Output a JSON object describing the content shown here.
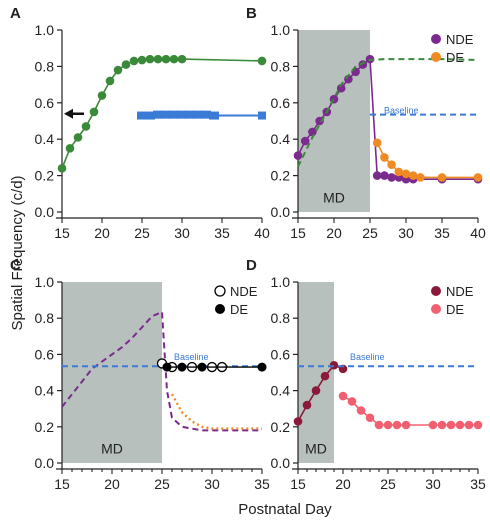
{
  "figure": {
    "shared_ylabel": "Spatial Frequency (c/d)",
    "shared_xlabel": "Postnatal Day"
  },
  "chart_data": [
    {
      "panel": "A",
      "type": "line",
      "xlim": [
        15,
        40
      ],
      "ylim": [
        0,
        1.0
      ],
      "xticks": [
        15,
        20,
        25,
        30,
        35,
        40
      ],
      "yticks": [
        0.0,
        0.2,
        0.4,
        0.6,
        0.8,
        1.0
      ],
      "ytick_labels": [
        "0.0",
        "0.2",
        "0.4",
        "0.6",
        "0.8",
        "1.0"
      ],
      "grid": false,
      "series": [
        {
          "color": "#3a8a3a",
          "style": "solid-markers",
          "x": [
            15,
            16,
            17,
            18,
            19,
            20,
            21,
            22,
            23,
            24,
            25,
            26,
            27,
            28,
            29,
            30,
            40
          ],
          "y": [
            0.24,
            0.35,
            0.41,
            0.47,
            0.55,
            0.64,
            0.72,
            0.78,
            0.81,
            0.83,
            0.835,
            0.84,
            0.84,
            0.84,
            0.84,
            0.84,
            0.83
          ]
        },
        {
          "color": "#3a7bd5",
          "style": "band",
          "x": [
            25,
            26,
            27,
            28,
            29,
            30,
            31,
            32,
            33,
            34,
            40
          ],
          "y": [
            0.53,
            0.53,
            0.535,
            0.535,
            0.535,
            0.535,
            0.535,
            0.535,
            0.535,
            0.53,
            0.53
          ]
        }
      ],
      "annotations": [
        {
          "kind": "arrow",
          "y": 0.54
        }
      ]
    },
    {
      "panel": "B",
      "type": "line",
      "xlim": [
        15,
        40
      ],
      "ylim": [
        0,
        1.0
      ],
      "xticks": [
        15,
        20,
        25,
        30,
        35,
        40
      ],
      "yticks": [
        0.0,
        0.2,
        0.4,
        0.6,
        0.8,
        1.0
      ],
      "grid": false,
      "shaded_region": {
        "x": [
          15,
          25
        ],
        "label": "MD",
        "color": "#b7c0bd"
      },
      "legend": {
        "position": "top-right",
        "entries": [
          "NDE",
          "DE"
        ]
      },
      "series": [
        {
          "name": "NDE",
          "color": "#7b2a8e",
          "style": "solid-markers",
          "x": [
            15,
            16,
            17,
            18,
            19,
            20,
            21,
            22,
            23,
            24,
            25,
            26,
            27,
            28,
            29,
            30,
            31,
            35,
            40
          ],
          "y": [
            0.31,
            0.39,
            0.44,
            0.5,
            0.55,
            0.62,
            0.68,
            0.73,
            0.77,
            0.81,
            0.84,
            0.2,
            0.2,
            0.19,
            0.19,
            0.18,
            0.18,
            0.18,
            0.18
          ]
        },
        {
          "name": "DE",
          "color": "#f08a24",
          "style": "solid-markers",
          "x": [
            26,
            27,
            28,
            29,
            30,
            31,
            32,
            35,
            40
          ],
          "y": [
            0.38,
            0.3,
            0.26,
            0.22,
            0.21,
            0.2,
            0.19,
            0.19,
            0.19
          ]
        },
        {
          "color": "#3a8a3a",
          "style": "dashed",
          "x": [
            15,
            17,
            19,
            21,
            23,
            25,
            27,
            30,
            35,
            40
          ],
          "y": [
            0.25,
            0.41,
            0.55,
            0.7,
            0.8,
            0.835,
            0.84,
            0.84,
            0.84,
            0.835
          ]
        },
        {
          "name": "Baseline",
          "color": "#3a7bd5",
          "style": "dashed",
          "x": [
            25,
            40
          ],
          "y": [
            0.535,
            0.535
          ]
        }
      ],
      "annotations": [
        {
          "kind": "text",
          "text": "Baseline"
        }
      ]
    },
    {
      "panel": "C",
      "type": "line",
      "xlim": [
        15,
        35
      ],
      "ylim": [
        0,
        1.0
      ],
      "xticks": [
        15,
        20,
        25,
        30,
        35
      ],
      "yticks": [
        0.0,
        0.2,
        0.4,
        0.6,
        0.8,
        1.0
      ],
      "ytick_labels": [
        "0.0",
        "0.2",
        "0.4",
        "0.6",
        "0.8",
        "1.0"
      ],
      "grid": false,
      "shaded_region": {
        "x": [
          15,
          25
        ],
        "label": "MD",
        "color": "#b7c0bd"
      },
      "legend": {
        "position": "top-right",
        "entries": [
          "NDE",
          "DE"
        ]
      },
      "series": [
        {
          "color": "#7b2a8e",
          "style": "dashed",
          "x": [
            15,
            16,
            17,
            18,
            19,
            20,
            21,
            22,
            23,
            24,
            25,
            25.5,
            26,
            27,
            28,
            29,
            30,
            32,
            35
          ],
          "y": [
            0.31,
            0.38,
            0.45,
            0.52,
            0.56,
            0.6,
            0.64,
            0.69,
            0.75,
            0.81,
            0.835,
            0.4,
            0.25,
            0.2,
            0.19,
            0.18,
            0.18,
            0.18,
            0.18
          ]
        },
        {
          "color": "#f08a24",
          "style": "dotted",
          "x": [
            26,
            27,
            28,
            29,
            30,
            32,
            35
          ],
          "y": [
            0.38,
            0.28,
            0.23,
            0.2,
            0.19,
            0.19,
            0.19
          ]
        },
        {
          "name": "Baseline",
          "color": "#3a7bd5",
          "style": "dashed",
          "x": [
            15,
            35
          ],
          "y": [
            0.535,
            0.535
          ]
        },
        {
          "name": "NDE",
          "color": "#000000",
          "style": "open-markers",
          "x": [
            25,
            26,
            28,
            30,
            31
          ],
          "y": [
            0.55,
            0.53,
            0.53,
            0.53,
            0.53
          ]
        },
        {
          "name": "DE",
          "color": "#000000",
          "style": "filled-markers",
          "x": [
            25.5,
            27,
            29,
            35
          ],
          "y": [
            0.53,
            0.53,
            0.53,
            0.53
          ]
        }
      ],
      "annotations": [
        {
          "kind": "text",
          "text": "Baseline"
        }
      ]
    },
    {
      "panel": "D",
      "type": "line",
      "xlim": [
        15,
        35
      ],
      "ylim": [
        0,
        1.0
      ],
      "xticks": [
        15,
        20,
        25,
        30,
        35
      ],
      "yticks": [
        0.0,
        0.2,
        0.4,
        0.6,
        0.8,
        1.0
      ],
      "grid": false,
      "shaded_region": {
        "x": [
          15,
          19
        ],
        "label": "MD",
        "color": "#b7c0bd"
      },
      "legend": {
        "position": "top-right",
        "entries": [
          "NDE",
          "DE"
        ]
      },
      "series": [
        {
          "name": "NDE",
          "color": "#8b1a3a",
          "style": "solid-markers",
          "x": [
            15,
            16,
            17,
            18,
            19,
            20
          ],
          "y": [
            0.23,
            0.32,
            0.4,
            0.48,
            0.54,
            0.52
          ]
        },
        {
          "name": "DE",
          "color": "#f06070",
          "style": "solid-markers",
          "x": [
            20,
            21,
            22,
            23,
            24,
            25,
            26,
            27,
            30,
            31,
            32,
            33,
            34,
            35
          ],
          "y": [
            0.37,
            0.34,
            0.29,
            0.25,
            0.21,
            0.21,
            0.21,
            0.21,
            0.21,
            0.21,
            0.21,
            0.21,
            0.21,
            0.21
          ]
        },
        {
          "name": "Baseline",
          "color": "#3a7bd5",
          "style": "dashed",
          "x": [
            15,
            35
          ],
          "y": [
            0.535,
            0.535
          ]
        }
      ],
      "annotations": [
        {
          "kind": "text",
          "text": "Baseline"
        }
      ]
    }
  ]
}
